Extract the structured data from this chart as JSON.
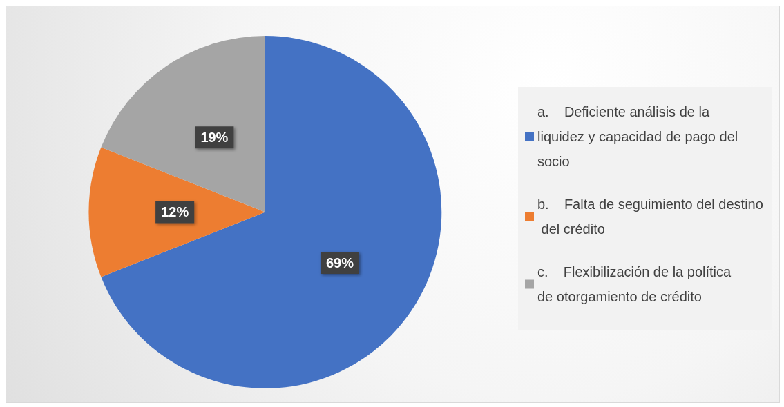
{
  "chart_data": {
    "type": "pie",
    "categories": [
      "a.    Deficiente análisis de la liquidez y capacidad de pago del socio",
      "b.    Falta de seguimiento del destino del crédito",
      "c.    Flexibilización de la política de otorgamiento de crédito"
    ],
    "values": [
      69,
      12,
      19
    ],
    "colors": [
      "#4472c4",
      "#ed7d31",
      "#a5a5a5"
    ],
    "value_labels": [
      "69%",
      "12%",
      "19%"
    ],
    "legend": "right"
  }
}
